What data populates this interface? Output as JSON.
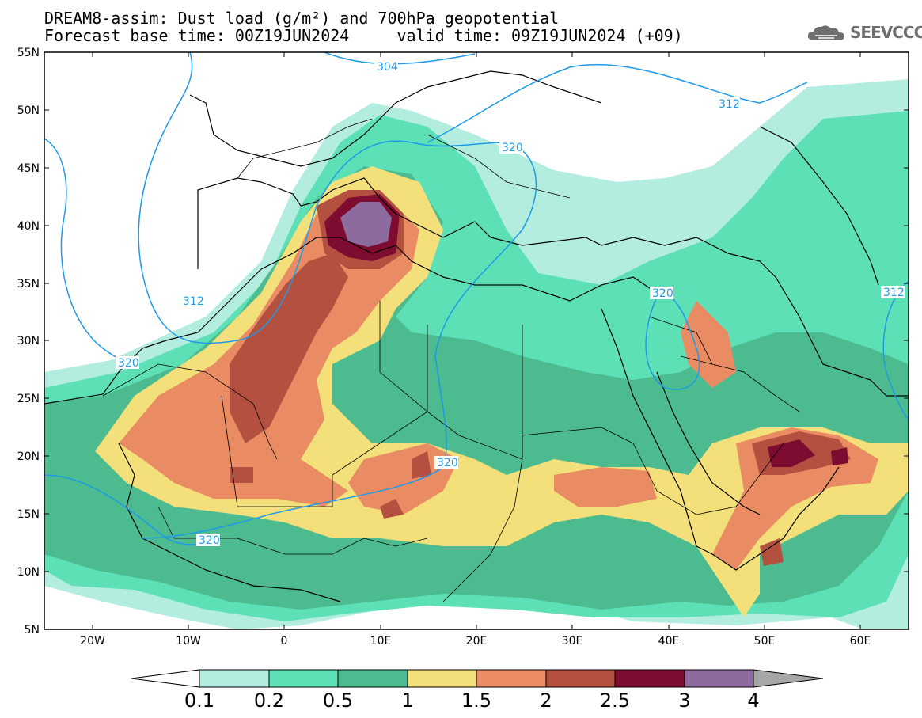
{
  "title": {
    "line1": "DREAM8-assim: Dust load (g/m²) and 700hPa geopotential",
    "line2": "Forecast base time: 00Z19JUN2024     valid time: 09Z19JUN2024 (+09)"
  },
  "logo": {
    "text": "SEEVCCC",
    "icon": "cloud-icon"
  },
  "map": {
    "lat_range": [
      5,
      55
    ],
    "lon_range": [
      -25,
      65
    ],
    "lat_ticks": [
      "5N",
      "10N",
      "15N",
      "20N",
      "25N",
      "30N",
      "35N",
      "40N",
      "45N",
      "50N",
      "55N"
    ],
    "lon_ticks": [
      "20W",
      "10W",
      "0",
      "10E",
      "20E",
      "30E",
      "40E",
      "50E",
      "60E"
    ],
    "contour_labels": [
      "304",
      "312",
      "320",
      "320",
      "312",
      "320",
      "320",
      "320",
      "312"
    ]
  },
  "colorbar": {
    "labels": [
      "0.1",
      "0.2",
      "0.5",
      "1",
      "1.5",
      "2",
      "2.5",
      "3",
      "4"
    ],
    "colors": {
      "c01": "#b3ede0",
      "c02": "#5ee0b6",
      "c05": "#4cbb8f",
      "c1": "#f3e07a",
      "c15": "#e98c63",
      "c2": "#b4503f",
      "c25": "#7e0b30",
      "c3": "#8e6b9f",
      "c4": "#a7a7a7"
    }
  }
}
